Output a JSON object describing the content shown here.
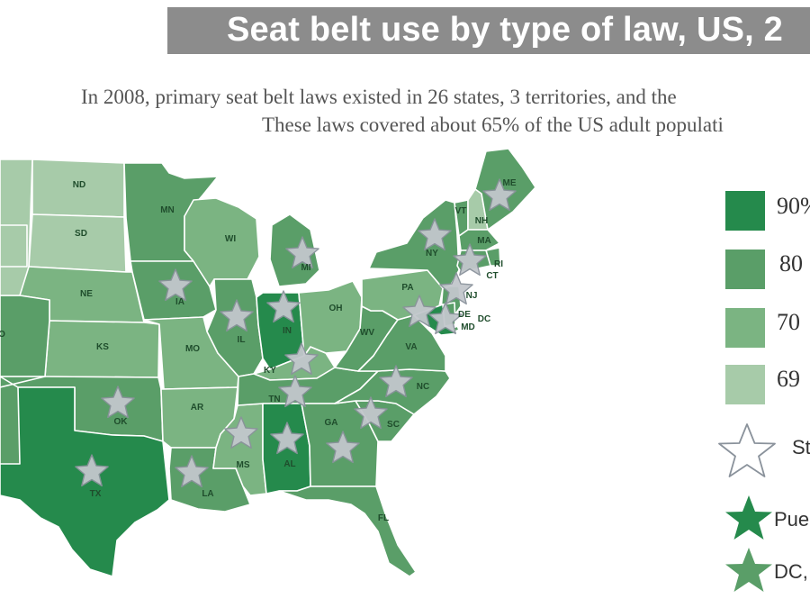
{
  "title": "Seat belt use by type of law, US, 2",
  "subtitle_line1": "In 2008, primary seat belt laws existed in 26 states, 3 territories, and the",
  "subtitle_line2": "These laws covered about 65% of the US adult populati",
  "colors": {
    "c90": "#258a4c",
    "c80": "#5a9e68",
    "c70": "#7bb482",
    "c69": "#a7cba9",
    "star_fill": "#c2c7cc",
    "star_stroke": "#8a929b",
    "title_bg": "#8c8c8c"
  },
  "legend": {
    "items": [
      {
        "label": "90%",
        "color_key": "c90"
      },
      {
        "label": "80",
        "color_key": "c80"
      },
      {
        "label": "70",
        "color_key": "c70"
      },
      {
        "label": "69",
        "color_key": "c69"
      }
    ],
    "star_label": "St",
    "pr_label": "Pue",
    "dc_label": "DC,"
  },
  "states": [
    {
      "abbr": "ND",
      "color_key": "c69",
      "star": false
    },
    {
      "abbr": "SD",
      "color_key": "c69",
      "star": false
    },
    {
      "abbr": "NE",
      "color_key": "c70",
      "star": false
    },
    {
      "abbr": "KS",
      "color_key": "c70",
      "star": false
    },
    {
      "abbr": "OK",
      "color_key": "c80",
      "star": true
    },
    {
      "abbr": "TX",
      "color_key": "c90",
      "star": true
    },
    {
      "abbr": "MN",
      "color_key": "c80",
      "star": false
    },
    {
      "abbr": "IA",
      "color_key": "c80",
      "star": true
    },
    {
      "abbr": "MO",
      "color_key": "c70",
      "star": false
    },
    {
      "abbr": "AR",
      "color_key": "c70",
      "star": false
    },
    {
      "abbr": "LA",
      "color_key": "c80",
      "star": true
    },
    {
      "abbr": "WI",
      "color_key": "c70",
      "star": false
    },
    {
      "abbr": "IL",
      "color_key": "c80",
      "star": true
    },
    {
      "abbr": "MS",
      "color_key": "c70",
      "star": true
    },
    {
      "abbr": "MI",
      "color_key": "c80",
      "star": true
    },
    {
      "abbr": "IN",
      "color_key": "c90",
      "star": true
    },
    {
      "abbr": "KY",
      "color_key": "c70",
      "star": true
    },
    {
      "abbr": "TN",
      "color_key": "c80",
      "star": true
    },
    {
      "abbr": "AL",
      "color_key": "c90",
      "star": true
    },
    {
      "abbr": "OH",
      "color_key": "c70",
      "star": false
    },
    {
      "abbr": "WV",
      "color_key": "c80",
      "star": false
    },
    {
      "abbr": "GA",
      "color_key": "c80",
      "star": true
    },
    {
      "abbr": "FL",
      "color_key": "c80",
      "star": false
    },
    {
      "abbr": "SC",
      "color_key": "c80",
      "star": true
    },
    {
      "abbr": "NC",
      "color_key": "c80",
      "star": true
    },
    {
      "abbr": "VA",
      "color_key": "c80",
      "star": false
    },
    {
      "abbr": "PA",
      "color_key": "c70",
      "star": false
    },
    {
      "abbr": "NY",
      "color_key": "c80",
      "star": true
    },
    {
      "abbr": "VT",
      "color_key": "c80",
      "star": false
    },
    {
      "abbr": "NH",
      "color_key": "c69",
      "star": false
    },
    {
      "abbr": "ME",
      "color_key": "c80",
      "star": true
    },
    {
      "abbr": "MA",
      "color_key": "c80",
      "star": false
    },
    {
      "abbr": "RI",
      "color_key": "c80",
      "star": false
    },
    {
      "abbr": "CT",
      "color_key": "c80",
      "star": true
    },
    {
      "abbr": "NJ",
      "color_key": "c80",
      "star": true
    },
    {
      "abbr": "DE",
      "color_key": "c80",
      "star": true
    },
    {
      "abbr": "MD",
      "color_key": "c90",
      "star": true
    },
    {
      "abbr": "DC",
      "color_key": "c80",
      "star": false
    },
    {
      "abbr": "O",
      "color_key": "c80",
      "star": false
    },
    {
      "abbr": "",
      "color_key": "c69",
      "star": false
    },
    {
      "abbr": "",
      "color_key": "c69",
      "star": false
    },
    {
      "abbr": "",
      "color_key": "c80",
      "star": false
    }
  ]
}
